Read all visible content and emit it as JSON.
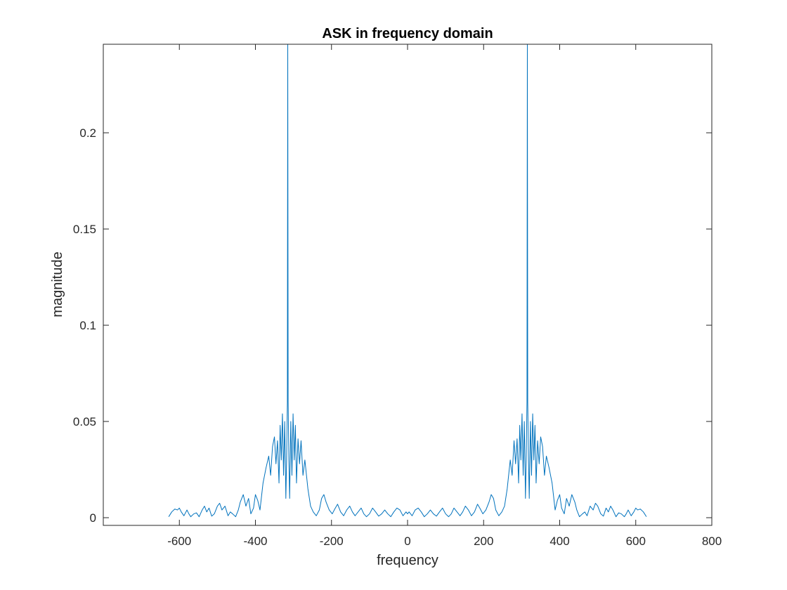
{
  "chart_data": {
    "type": "line",
    "title": "ASK in frequency domain",
    "xlabel": "frequency",
    "ylabel": "magnitude",
    "xlim": [
      -800,
      800
    ],
    "ylim": [
      -0.004,
      0.246
    ],
    "xticks": [
      -600,
      -400,
      -200,
      0,
      200,
      400,
      600,
      800
    ],
    "yticks": [
      0,
      0.05,
      0.1,
      0.15,
      0.2
    ],
    "xtick_labels": [
      "-600",
      "-400",
      "-200",
      "0",
      "200",
      "400",
      "600",
      "800"
    ],
    "ytick_labels": [
      "0",
      "0.05",
      "0.1",
      "0.15",
      "0.2"
    ],
    "x_first_tick_shown": -600,
    "grid": false,
    "box": true,
    "line_color": "#0072bd",
    "series": [
      {
        "x": [
          -628,
          -620,
          -612,
          -605,
          -600,
          -595,
          -588,
          -580,
          -575,
          -570,
          -562,
          -555,
          -548,
          -540,
          -534,
          -528,
          -522,
          -515,
          -508,
          -500,
          -494,
          -488,
          -480,
          -472,
          -466,
          -460,
          -452,
          -445,
          -440,
          -432,
          -425,
          -418,
          -412,
          -405,
          -400,
          -394,
          -388,
          -380,
          -372,
          -365,
          -360,
          -355,
          -350,
          -346,
          -342,
          -338,
          -335,
          -332,
          -329,
          -326,
          -323,
          -320,
          -318,
          -316,
          -315,
          -314,
          -312,
          -310,
          -307,
          -304,
          -301,
          -298,
          -295,
          -292,
          -288,
          -284,
          -280,
          -275,
          -270,
          -262,
          -255,
          -248,
          -240,
          -232,
          -226,
          -220,
          -214,
          -206,
          -198,
          -190,
          -184,
          -176,
          -168,
          -160,
          -152,
          -145,
          -138,
          -130,
          -122,
          -115,
          -108,
          -100,
          -92,
          -84,
          -76,
          -68,
          -60,
          -52,
          -44,
          -36,
          -28,
          -20,
          -12,
          -4,
          0,
          4,
          12,
          20,
          28,
          36,
          44,
          52,
          60,
          68,
          76,
          84,
          92,
          100,
          108,
          115,
          122,
          130,
          138,
          145,
          152,
          160,
          168,
          176,
          184,
          190,
          198,
          206,
          214,
          220,
          226,
          232,
          240,
          248,
          255,
          262,
          270,
          275,
          280,
          284,
          288,
          292,
          295,
          298,
          301,
          304,
          307,
          310,
          312,
          314,
          315,
          316,
          318,
          320,
          323,
          326,
          329,
          332,
          335,
          338,
          342,
          346,
          350,
          355,
          360,
          365,
          372,
          380,
          388,
          394,
          400,
          405,
          412,
          418,
          425,
          432,
          440,
          445,
          452,
          460,
          466,
          472,
          480,
          488,
          494,
          500,
          508,
          515,
          522,
          528,
          534,
          540,
          548,
          555,
          562,
          570,
          575,
          580,
          588,
          595,
          600,
          605,
          612,
          620,
          628
        ],
        "y": [
          0.0005,
          0.003,
          0.0045,
          0.004,
          0.005,
          0.003,
          0.001,
          0.004,
          0.002,
          0.0005,
          0.002,
          0.0025,
          0.0005,
          0.004,
          0.006,
          0.003,
          0.005,
          0.0008,
          0.002,
          0.006,
          0.0075,
          0.004,
          0.006,
          0.001,
          0.003,
          0.002,
          0.0005,
          0.004,
          0.008,
          0.012,
          0.006,
          0.01,
          0.002,
          0.005,
          0.012,
          0.009,
          0.004,
          0.018,
          0.026,
          0.032,
          0.022,
          0.037,
          0.042,
          0.028,
          0.04,
          0.018,
          0.048,
          0.03,
          0.054,
          0.022,
          0.05,
          0.01,
          0.03,
          0.06,
          0.246,
          0.06,
          0.03,
          0.01,
          0.05,
          0.022,
          0.054,
          0.03,
          0.048,
          0.018,
          0.041,
          0.028,
          0.04,
          0.022,
          0.03,
          0.015,
          0.006,
          0.003,
          0.001,
          0.004,
          0.01,
          0.012,
          0.008,
          0.004,
          0.002,
          0.005,
          0.007,
          0.003,
          0.001,
          0.004,
          0.006,
          0.003,
          0.001,
          0.003,
          0.005,
          0.002,
          0.0005,
          0.002,
          0.005,
          0.003,
          0.0008,
          0.002,
          0.004,
          0.002,
          0.0005,
          0.003,
          0.005,
          0.004,
          0.001,
          0.003,
          0.002,
          0.003,
          0.001,
          0.004,
          0.005,
          0.003,
          0.0005,
          0.002,
          0.004,
          0.002,
          0.0008,
          0.003,
          0.005,
          0.002,
          0.0005,
          0.002,
          0.005,
          0.003,
          0.001,
          0.003,
          0.006,
          0.004,
          0.001,
          0.003,
          0.007,
          0.005,
          0.002,
          0.004,
          0.008,
          0.012,
          0.01,
          0.004,
          0.001,
          0.003,
          0.006,
          0.015,
          0.03,
          0.022,
          0.04,
          0.028,
          0.041,
          0.018,
          0.048,
          0.03,
          0.054,
          0.022,
          0.05,
          0.01,
          0.03,
          0.06,
          0.246,
          0.06,
          0.03,
          0.01,
          0.05,
          0.022,
          0.054,
          0.03,
          0.048,
          0.018,
          0.04,
          0.028,
          0.042,
          0.037,
          0.022,
          0.032,
          0.026,
          0.018,
          0.004,
          0.009,
          0.012,
          0.005,
          0.002,
          0.01,
          0.006,
          0.012,
          0.008,
          0.004,
          0.0005,
          0.002,
          0.003,
          0.001,
          0.006,
          0.004,
          0.0075,
          0.006,
          0.002,
          0.0008,
          0.005,
          0.003,
          0.006,
          0.004,
          0.0005,
          0.0025,
          0.002,
          0.0005,
          0.002,
          0.004,
          0.001,
          0.003,
          0.005,
          0.004,
          0.0045,
          0.003,
          0.0005
        ]
      }
    ]
  }
}
